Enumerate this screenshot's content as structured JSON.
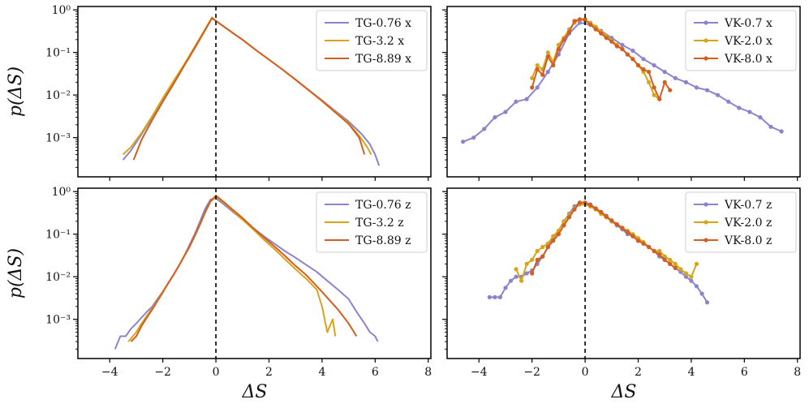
{
  "colors": {
    "series1": "#8b84cc",
    "series2": "#d6a61a",
    "series3": "#d35e20"
  },
  "figure": {
    "ylabel_top": "p(ΔS)",
    "ylabel_bottom": "p(ΔS)",
    "xlabel_left": "ΔS",
    "xlabel_right": "ΔS"
  },
  "chart_data": [
    {
      "type": "line",
      "panel": "top-left",
      "yscale": "log",
      "xlim": [
        -5.2,
        8.1
      ],
      "ylim": [
        0.00012,
        1.2
      ],
      "x_ticks": [
        -4,
        -2,
        0,
        2,
        4,
        6,
        8
      ],
      "x_tick_labels": [
        "",
        "",
        "",
        "",
        "",
        "",
        ""
      ],
      "y_ticks": [
        1,
        0.1,
        0.01,
        0.001
      ],
      "y_tick_labels": [
        "10^0",
        "10^-1",
        "10^-2",
        "10^-3"
      ],
      "vline_x": 0,
      "legend": "top-right",
      "series": [
        {
          "name": "TG-0.76 x",
          "color": "#8b84cc",
          "markers": false,
          "x": [
            -3.5,
            -3.2,
            -2.8,
            -2.4,
            -2.0,
            -1.6,
            -1.2,
            -0.8,
            -0.4,
            -0.15,
            0.0,
            0.5,
            1.0,
            1.5,
            2.0,
            2.5,
            3.0,
            3.5,
            4.0,
            4.5,
            5.0,
            5.5,
            5.8,
            6.0,
            6.15
          ],
          "y": [
            0.0003,
            0.0005,
            0.0012,
            0.003,
            0.008,
            0.02,
            0.05,
            0.13,
            0.35,
            0.65,
            0.55,
            0.33,
            0.2,
            0.115,
            0.068,
            0.04,
            0.023,
            0.013,
            0.0075,
            0.0042,
            0.0024,
            0.0012,
            0.0007,
            0.0004,
            0.00022
          ]
        },
        {
          "name": "TG-3.2 x",
          "color": "#d6a61a",
          "markers": false,
          "x": [
            -3.5,
            -3.2,
            -2.8,
            -2.4,
            -2.0,
            -1.6,
            -1.2,
            -0.8,
            -0.4,
            -0.15,
            0.0,
            0.5,
            1.0,
            1.5,
            2.0,
            2.5,
            3.0,
            3.5,
            4.0,
            4.5,
            5.0,
            5.4,
            5.7,
            5.85
          ],
          "y": [
            0.0004,
            0.0006,
            0.0013,
            0.0032,
            0.0085,
            0.021,
            0.052,
            0.135,
            0.36,
            0.66,
            0.55,
            0.33,
            0.2,
            0.115,
            0.068,
            0.04,
            0.023,
            0.013,
            0.0074,
            0.004,
            0.0022,
            0.0011,
            0.0006,
            0.0004
          ]
        },
        {
          "name": "TG-8.89 x",
          "color": "#d35e20",
          "markers": false,
          "x": [
            -3.1,
            -2.8,
            -2.4,
            -2.0,
            -1.6,
            -1.2,
            -0.8,
            -0.4,
            -0.15,
            0.0,
            0.5,
            1.0,
            1.5,
            2.0,
            2.5,
            3.0,
            3.5,
            4.0,
            4.5,
            5.0,
            5.4,
            5.6
          ],
          "y": [
            0.0003,
            0.0009,
            0.0026,
            0.007,
            0.018,
            0.048,
            0.125,
            0.34,
            0.64,
            0.55,
            0.33,
            0.2,
            0.115,
            0.068,
            0.04,
            0.023,
            0.013,
            0.0072,
            0.0039,
            0.0021,
            0.001,
            0.0004
          ]
        }
      ]
    },
    {
      "type": "line",
      "panel": "top-right",
      "yscale": "log",
      "xlim": [
        -5.2,
        8.1
      ],
      "ylim": [
        0.00012,
        1.2
      ],
      "x_ticks": [
        -4,
        -2,
        0,
        2,
        4,
        6,
        8
      ],
      "x_tick_labels": [
        "",
        "",
        "",
        "",
        "",
        "",
        ""
      ],
      "y_ticks": [
        1,
        0.1,
        0.01,
        0.001
      ],
      "y_tick_labels": [
        "",
        "",
        "",
        ""
      ],
      "vline_x": 0,
      "legend": "top-right",
      "series": [
        {
          "name": "VK-0.7 x",
          "color": "#8b84cc",
          "markers": true,
          "x": [
            -4.6,
            -4.2,
            -3.8,
            -3.4,
            -3.0,
            -2.6,
            -2.2,
            -1.8,
            -1.4,
            -1.0,
            -0.6,
            -0.2,
            0.2,
            0.6,
            1.0,
            1.4,
            1.8,
            2.2,
            2.6,
            3.0,
            3.4,
            3.8,
            4.2,
            4.6,
            5.0,
            5.4,
            5.8,
            6.2,
            6.6,
            7.0,
            7.4
          ],
          "y": [
            0.0008,
            0.001,
            0.0016,
            0.003,
            0.004,
            0.007,
            0.008,
            0.015,
            0.035,
            0.09,
            0.28,
            0.5,
            0.45,
            0.32,
            0.22,
            0.15,
            0.11,
            0.07,
            0.05,
            0.035,
            0.025,
            0.02,
            0.015,
            0.013,
            0.01,
            0.007,
            0.005,
            0.004,
            0.003,
            0.0018,
            0.0014
          ]
        },
        {
          "name": "VK-2.0 x",
          "color": "#d6a61a",
          "markers": true,
          "x": [
            -2.0,
            -1.8,
            -1.6,
            -1.4,
            -1.2,
            -1.0,
            -0.8,
            -0.6,
            -0.4,
            -0.2,
            0.0,
            0.2,
            0.4,
            0.6,
            0.8,
            1.0,
            1.2,
            1.4,
            1.6,
            1.8,
            2.0,
            2.2,
            2.4,
            2.6,
            2.8
          ],
          "y": [
            0.025,
            0.05,
            0.04,
            0.1,
            0.06,
            0.15,
            0.22,
            0.35,
            0.5,
            0.6,
            0.55,
            0.5,
            0.4,
            0.3,
            0.25,
            0.19,
            0.15,
            0.12,
            0.09,
            0.07,
            0.05,
            0.035,
            0.02,
            0.01,
            0.008
          ]
        },
        {
          "name": "VK-8.0 x",
          "color": "#d35e20",
          "markers": true,
          "x": [
            -2.0,
            -1.8,
            -1.6,
            -1.4,
            -1.2,
            -1.0,
            -0.8,
            -0.6,
            -0.4,
            -0.2,
            0.0,
            0.2,
            0.4,
            0.6,
            0.8,
            1.0,
            1.2,
            1.4,
            1.6,
            1.8,
            2.0,
            2.2,
            2.4,
            2.6,
            2.8,
            3.0,
            3.2
          ],
          "y": [
            0.015,
            0.04,
            0.03,
            0.08,
            0.05,
            0.12,
            0.2,
            0.3,
            0.55,
            0.6,
            0.6,
            0.45,
            0.35,
            0.28,
            0.22,
            0.18,
            0.14,
            0.12,
            0.09,
            0.07,
            0.05,
            0.04,
            0.035,
            0.015,
            0.008,
            0.02,
            0.013
          ]
        }
      ]
    },
    {
      "type": "line",
      "panel": "bottom-left",
      "yscale": "log",
      "xlim": [
        -5.2,
        8.1
      ],
      "ylim": [
        0.00012,
        1.2
      ],
      "x_ticks": [
        -4,
        -2,
        0,
        2,
        4,
        6,
        8
      ],
      "x_tick_labels": [
        "−4",
        "−2",
        "0",
        "2",
        "4",
        "6",
        "8"
      ],
      "y_ticks": [
        1,
        0.1,
        0.01,
        0.001
      ],
      "y_tick_labels": [
        "10^0",
        "10^-1",
        "10^-2",
        "10^-3"
      ],
      "vline_x": 0,
      "legend": "top-right",
      "series": [
        {
          "name": "TG-0.76 z",
          "color": "#8b84cc",
          "markers": false,
          "x": [
            -3.8,
            -3.6,
            -3.4,
            -3.2,
            -3.0,
            -2.8,
            -2.6,
            -2.4,
            -2.2,
            -2.0,
            -1.8,
            -1.6,
            -1.4,
            -1.2,
            -1.0,
            -0.8,
            -0.6,
            -0.4,
            -0.2,
            0.0,
            0.3,
            0.6,
            1.0,
            1.4,
            1.8,
            2.2,
            2.6,
            3.0,
            3.4,
            3.8,
            4.2,
            4.6,
            5.0,
            5.3,
            5.6,
            5.8,
            6.0,
            6.1
          ],
          "y": [
            0.0002,
            0.0004,
            0.0004,
            0.0006,
            0.0008,
            0.0011,
            0.0015,
            0.002,
            0.003,
            0.0045,
            0.007,
            0.011,
            0.018,
            0.03,
            0.055,
            0.1,
            0.2,
            0.4,
            0.65,
            0.7,
            0.5,
            0.35,
            0.22,
            0.14,
            0.09,
            0.06,
            0.04,
            0.028,
            0.019,
            0.013,
            0.008,
            0.005,
            0.003,
            0.0015,
            0.0008,
            0.0005,
            0.0004,
            0.0003
          ]
        },
        {
          "name": "TG-3.2 z",
          "color": "#d6a61a",
          "markers": false,
          "x": [
            -3.3,
            -3.0,
            -2.8,
            -2.6,
            -2.4,
            -2.2,
            -2.0,
            -1.8,
            -1.6,
            -1.4,
            -1.2,
            -1.0,
            -0.8,
            -0.6,
            -0.4,
            -0.2,
            0.0,
            0.3,
            0.6,
            1.0,
            1.4,
            1.8,
            2.2,
            2.6,
            3.0,
            3.4,
            3.8,
            4.0,
            4.2,
            4.4,
            4.5
          ],
          "y": [
            0.0003,
            0.0005,
            0.0008,
            0.0012,
            0.0018,
            0.0028,
            0.0045,
            0.007,
            0.011,
            0.018,
            0.03,
            0.05,
            0.09,
            0.17,
            0.33,
            0.58,
            0.75,
            0.55,
            0.37,
            0.22,
            0.13,
            0.075,
            0.045,
            0.026,
            0.015,
            0.009,
            0.005,
            0.002,
            0.0005,
            0.001,
            0.0004
          ]
        },
        {
          "name": "TG-8.89 z",
          "color": "#d35e20",
          "markers": false,
          "x": [
            -3.2,
            -3.0,
            -2.8,
            -2.6,
            -2.4,
            -2.2,
            -2.0,
            -1.8,
            -1.6,
            -1.4,
            -1.2,
            -1.0,
            -0.8,
            -0.6,
            -0.4,
            -0.2,
            0.0,
            0.3,
            0.6,
            1.0,
            1.4,
            1.8,
            2.2,
            2.6,
            3.0,
            3.4,
            3.8,
            4.2,
            4.6,
            5.0,
            5.3
          ],
          "y": [
            0.0003,
            0.0004,
            0.0007,
            0.0011,
            0.0017,
            0.0027,
            0.0043,
            0.007,
            0.011,
            0.018,
            0.03,
            0.05,
            0.09,
            0.17,
            0.33,
            0.6,
            0.8,
            0.57,
            0.39,
            0.24,
            0.14,
            0.085,
            0.052,
            0.031,
            0.018,
            0.011,
            0.006,
            0.0032,
            0.0017,
            0.0008,
            0.0004
          ]
        }
      ]
    },
    {
      "type": "line",
      "panel": "bottom-right",
      "yscale": "log",
      "xlim": [
        -5.2,
        8.1
      ],
      "ylim": [
        0.00012,
        1.2
      ],
      "x_ticks": [
        -4,
        -2,
        0,
        2,
        4,
        6,
        8
      ],
      "x_tick_labels": [
        "−4",
        "−2",
        "0",
        "2",
        "4",
        "6",
        "8"
      ],
      "y_ticks": [
        1,
        0.1,
        0.01,
        0.001
      ],
      "y_tick_labels": [
        "",
        "",
        "",
        ""
      ],
      "vline_x": 0,
      "legend": "top-right",
      "series": [
        {
          "name": "VK-0.7 z",
          "color": "#8b84cc",
          "markers": true,
          "x": [
            -3.6,
            -3.4,
            -3.2,
            -3.0,
            -2.8,
            -2.6,
            -2.4,
            -2.2,
            -2.0,
            -1.8,
            -1.6,
            -1.4,
            -1.2,
            -1.0,
            -0.8,
            -0.6,
            -0.4,
            -0.2,
            0.0,
            0.2,
            0.4,
            0.6,
            0.8,
            1.0,
            1.2,
            1.4,
            1.6,
            1.8,
            2.0,
            2.2,
            2.4,
            2.6,
            2.8,
            3.0,
            3.2,
            3.4,
            3.6,
            3.8,
            4.0,
            4.2,
            4.4,
            4.6
          ],
          "y": [
            0.0033,
            0.0033,
            0.0033,
            0.0055,
            0.008,
            0.01,
            0.01,
            0.012,
            0.014,
            0.02,
            0.03,
            0.05,
            0.08,
            0.12,
            0.2,
            0.3,
            0.45,
            0.55,
            0.55,
            0.5,
            0.4,
            0.33,
            0.27,
            0.2,
            0.16,
            0.13,
            0.1,
            0.09,
            0.07,
            0.06,
            0.05,
            0.04,
            0.03,
            0.025,
            0.02,
            0.016,
            0.013,
            0.01,
            0.008,
            0.006,
            0.004,
            0.0025
          ]
        },
        {
          "name": "VK-2.0 z",
          "color": "#d6a61a",
          "markers": true,
          "x": [
            -2.6,
            -2.4,
            -2.2,
            -2.0,
            -1.8,
            -1.6,
            -1.4,
            -1.2,
            -1.0,
            -0.8,
            -0.6,
            -0.4,
            -0.2,
            0.0,
            0.2,
            0.4,
            0.6,
            0.8,
            1.0,
            1.2,
            1.4,
            1.6,
            1.8,
            2.0,
            2.2,
            2.4,
            2.6,
            2.8,
            3.0,
            3.2,
            3.4,
            3.6,
            3.8,
            4.0,
            4.2
          ],
          "y": [
            0.015,
            0.008,
            0.02,
            0.025,
            0.04,
            0.05,
            0.06,
            0.09,
            0.12,
            0.2,
            0.28,
            0.4,
            0.5,
            0.5,
            0.45,
            0.38,
            0.3,
            0.25,
            0.2,
            0.17,
            0.14,
            0.12,
            0.1,
            0.08,
            0.065,
            0.05,
            0.04,
            0.04,
            0.03,
            0.025,
            0.02,
            0.015,
            0.012,
            0.01,
            0.02
          ]
        },
        {
          "name": "VK-8.0 z",
          "color": "#d35e20",
          "markers": true,
          "x": [
            -2.0,
            -1.8,
            -1.6,
            -1.4,
            -1.2,
            -1.0,
            -0.8,
            -0.6,
            -0.4,
            -0.2,
            0.0,
            0.2,
            0.4,
            0.6,
            0.8,
            1.0,
            1.2,
            1.4,
            1.6,
            1.8,
            2.0,
            2.2,
            2.4,
            2.6,
            2.8,
            3.0,
            3.2,
            3.4
          ],
          "y": [
            0.012,
            0.025,
            0.03,
            0.05,
            0.07,
            0.1,
            0.16,
            0.25,
            0.38,
            0.55,
            0.55,
            0.48,
            0.4,
            0.33,
            0.26,
            0.21,
            0.17,
            0.14,
            0.11,
            0.09,
            0.07,
            0.06,
            0.05,
            0.04,
            0.033,
            0.025,
            0.02,
            0.016
          ]
        }
      ]
    }
  ]
}
